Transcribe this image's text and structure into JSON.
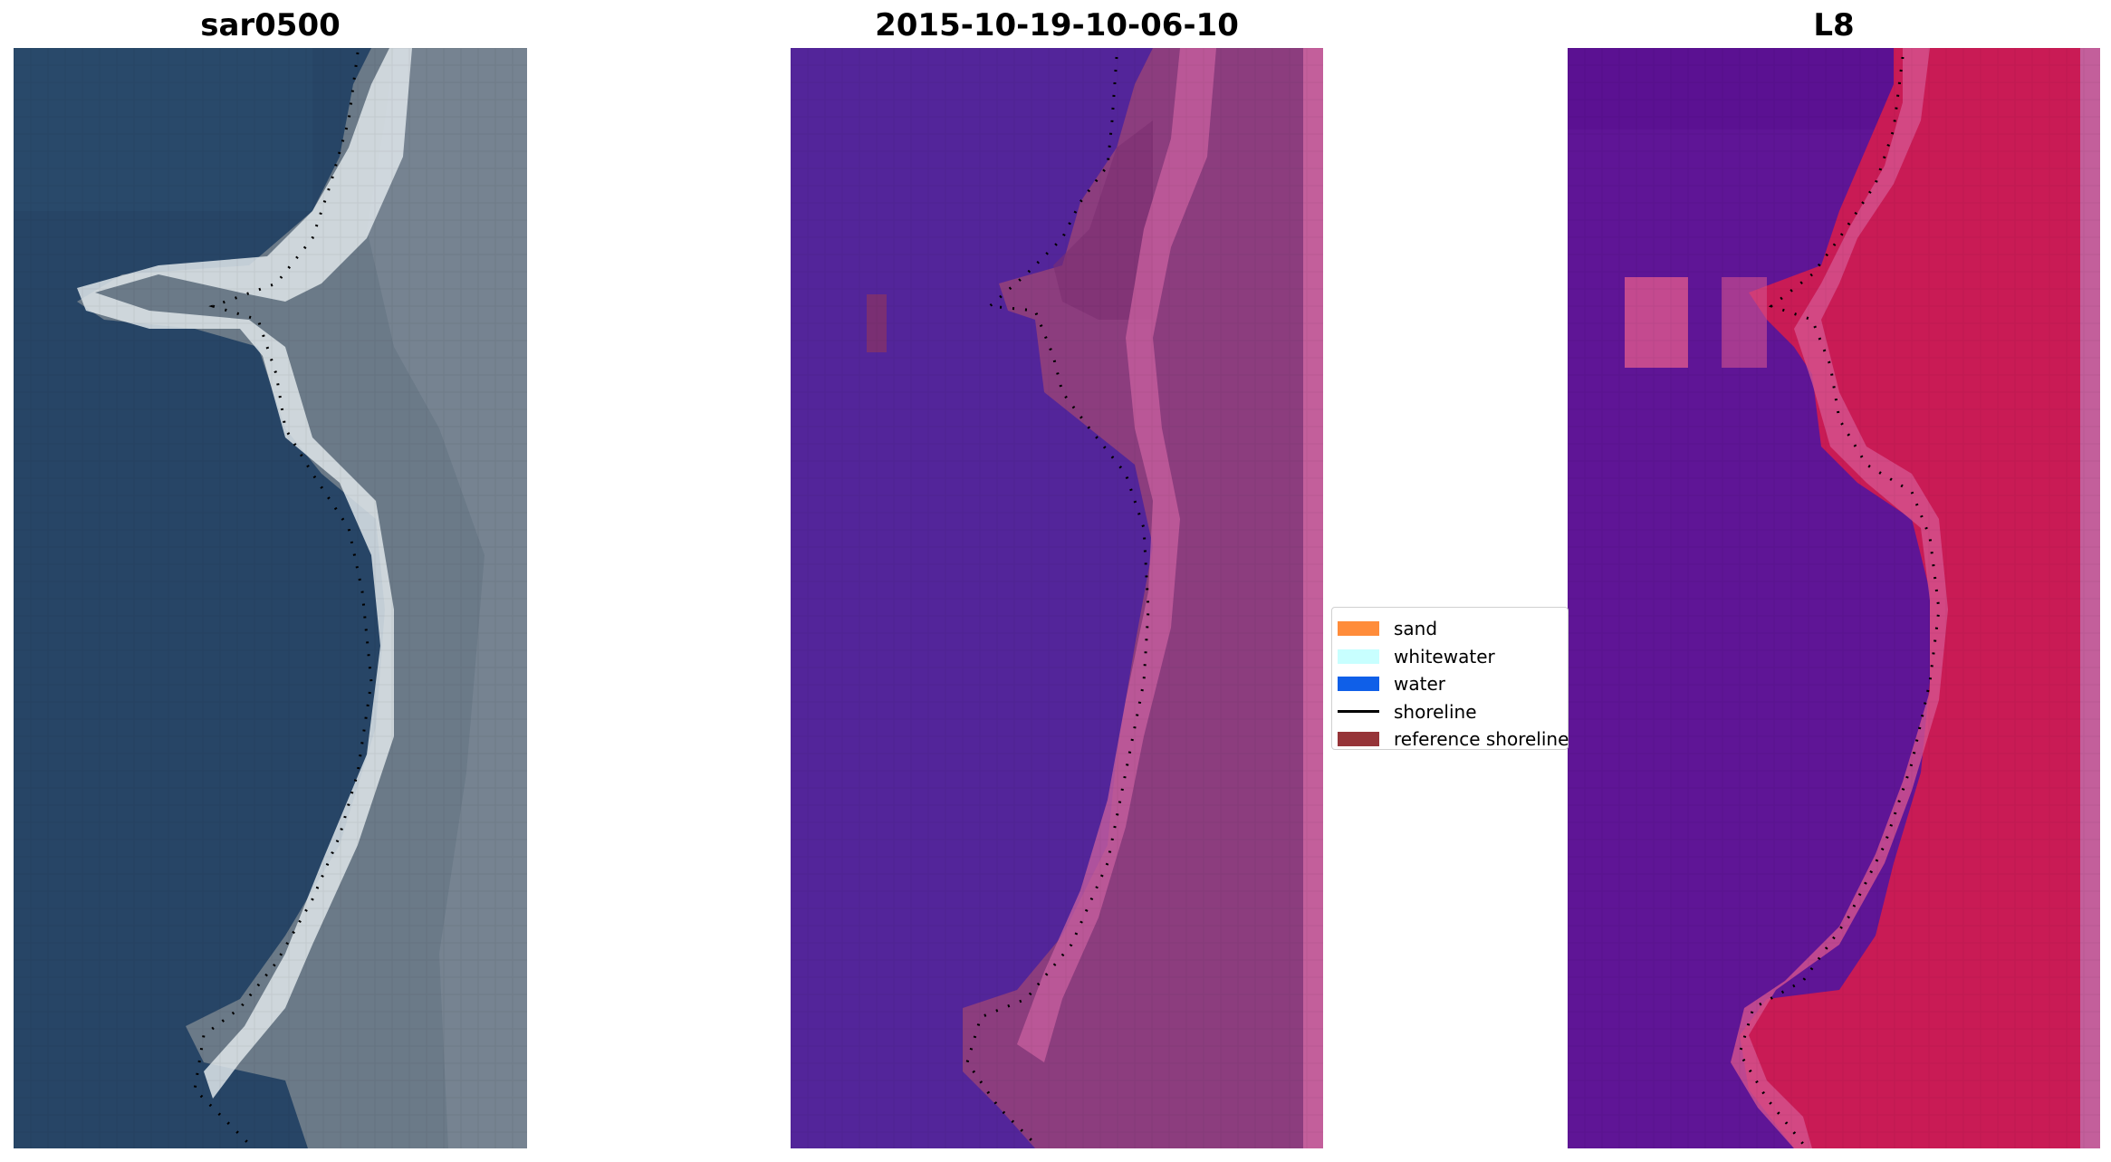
{
  "panels": [
    {
      "title": "sar0500",
      "image": "rgb-satellite-icon"
    },
    {
      "title": "2015-10-19-10-06-10",
      "image": "classified-image-icon"
    },
    {
      "title": "L8",
      "image": "false-color-image-icon"
    }
  ],
  "legend": {
    "items": [
      {
        "label": "sand",
        "color": "#ff8c3a",
        "kind": "patch"
      },
      {
        "label": "whitewater",
        "color": "#c8ffff",
        "kind": "patch"
      },
      {
        "label": "water",
        "color": "#0f5fe8",
        "kind": "patch"
      },
      {
        "label": "shoreline",
        "color": "#000000",
        "kind": "line"
      },
      {
        "label": "reference shoreline",
        "color": "#963438",
        "kind": "patch"
      }
    ]
  },
  "colors": {
    "ocean_rgb": "#274566",
    "land_rgb": "#6b7a88",
    "beach_rgb": "#dfe6ea",
    "water_class": "#53259a",
    "land_class": "#8c3d7e",
    "beach_class": "#c55e9e",
    "water_l8": "#5f1596",
    "land_l8": "#c91b55",
    "beach_l8": "#d6548e"
  }
}
